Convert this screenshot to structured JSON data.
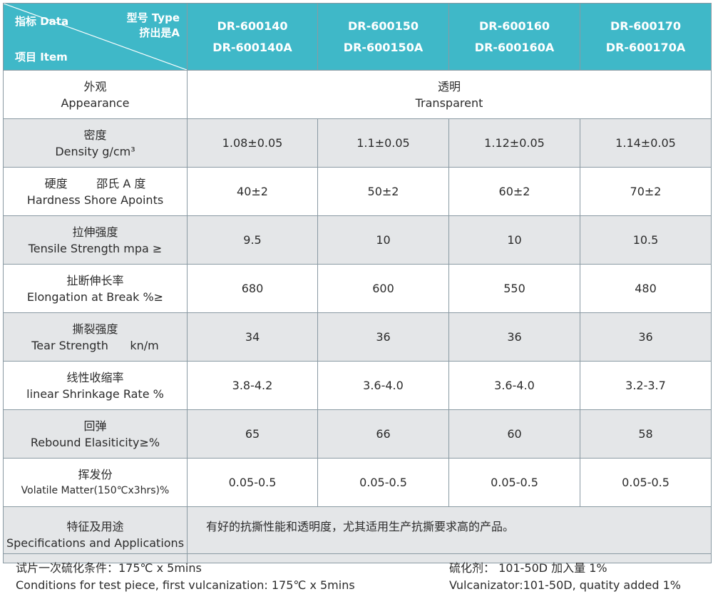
{
  "header": {
    "corner_data": "指标 Data",
    "corner_type_line1": "型号 Type",
    "corner_type_line2": "挤出是A",
    "corner_item": "项目 Item",
    "models": [
      {
        "line1": "DR-600140",
        "line2": "DR-600140A"
      },
      {
        "line1": "DR-600150",
        "line2": "DR-600150A"
      },
      {
        "line1": "DR-600160",
        "line2": "DR-600160A"
      },
      {
        "line1": "DR-600170",
        "line2": "DR-600170A"
      }
    ],
    "header_bg": "#3fb8c8"
  },
  "appearance": {
    "label_cn": "外观",
    "label_en": "Appearance",
    "value_cn": "透明",
    "value_en": "Transparent"
  },
  "rows": [
    {
      "label_cn": "密度",
      "label_en": "Density  g/cm³",
      "values": [
        "1.08±0.05",
        "1.1±0.05",
        "1.12±0.05",
        "1.14±0.05"
      ]
    },
    {
      "label_cn": "硬度        邵氏 A 度",
      "label_en": "Hardness  Shore Apoints",
      "values": [
        "40±2",
        "50±2",
        "60±2",
        "70±2"
      ]
    },
    {
      "label_cn": "拉伸强度",
      "label_en": "Tensile Strength  mpa ≥",
      "values": [
        "9.5",
        "10",
        "10",
        "10.5"
      ]
    },
    {
      "label_cn": "扯断伸长率",
      "label_en": "Elongation at Break %≥",
      "values": [
        "680",
        "600",
        "550",
        "480"
      ]
    },
    {
      "label_cn": "撕裂强度",
      "label_en": "Tear Strength      kn/m",
      "values": [
        "34",
        "36",
        "36",
        "36"
      ]
    },
    {
      "label_cn": "线性收缩率",
      "label_en": "linear Shrinkage Rate %",
      "values": [
        "3.8-4.2",
        "3.6-4.0",
        "3.6-4.0",
        "3.2-3.7"
      ]
    },
    {
      "label_cn": "回弹",
      "label_en": "Rebound Elasiticity≥%",
      "values": [
        "65",
        "66",
        "60",
        "58"
      ]
    },
    {
      "label_cn": "挥发份",
      "label_en": "Volatile Matter(150℃x3hrs)%",
      "values": [
        "0.05-0.5",
        "0.05-0.5",
        "0.05-0.5",
        "0.05-0.5"
      ]
    }
  ],
  "applications": {
    "label_cn": "特征及用途",
    "label_en": "Specifications and Applications",
    "text": "有好的抗撕性能和透明度，尤其适用生产抗撕要求高的产品。"
  },
  "footer": {
    "left_cn": "试片一次硫化条件：175℃ x 5mins",
    "left_en": "Conditions for test piece, first vulcanization: 175℃ x 5mins",
    "right_cn": "硫化剂： 101-50D  加入量 1%",
    "right_en": "Vulcanizator:101-50D, quatity added 1%"
  }
}
